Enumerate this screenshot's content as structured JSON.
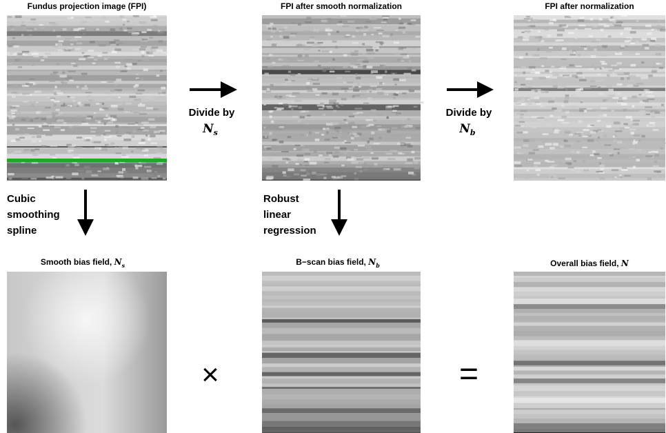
{
  "panels": {
    "fpi": {
      "title": "Fundus projection image (FPI)"
    },
    "fpi_smooth": {
      "title": "FPI after smooth normalization"
    },
    "fpi_norm": {
      "title": "FPI after normalization"
    },
    "smooth_bias": {
      "title": "Smooth bias field,",
      "symbol": "N",
      "subscript": "s"
    },
    "bscan_bias": {
      "title": "B−scan bias field,",
      "symbol": "N",
      "subscript": "b"
    },
    "overall_bias": {
      "title": "Overall bias field,",
      "symbol": "N"
    }
  },
  "steps": {
    "divide_s": {
      "label": "Divide by",
      "symbol": "N",
      "subscript": "s"
    },
    "divide_b": {
      "label": "Divide by",
      "symbol": "N",
      "subscript": "b"
    },
    "spline": {
      "lines": [
        "Cubic",
        "smoothing",
        "spline"
      ]
    },
    "regression": {
      "lines": [
        "Robust",
        "linear",
        "regression"
      ]
    }
  },
  "operators": {
    "times": "×",
    "equals": "="
  }
}
